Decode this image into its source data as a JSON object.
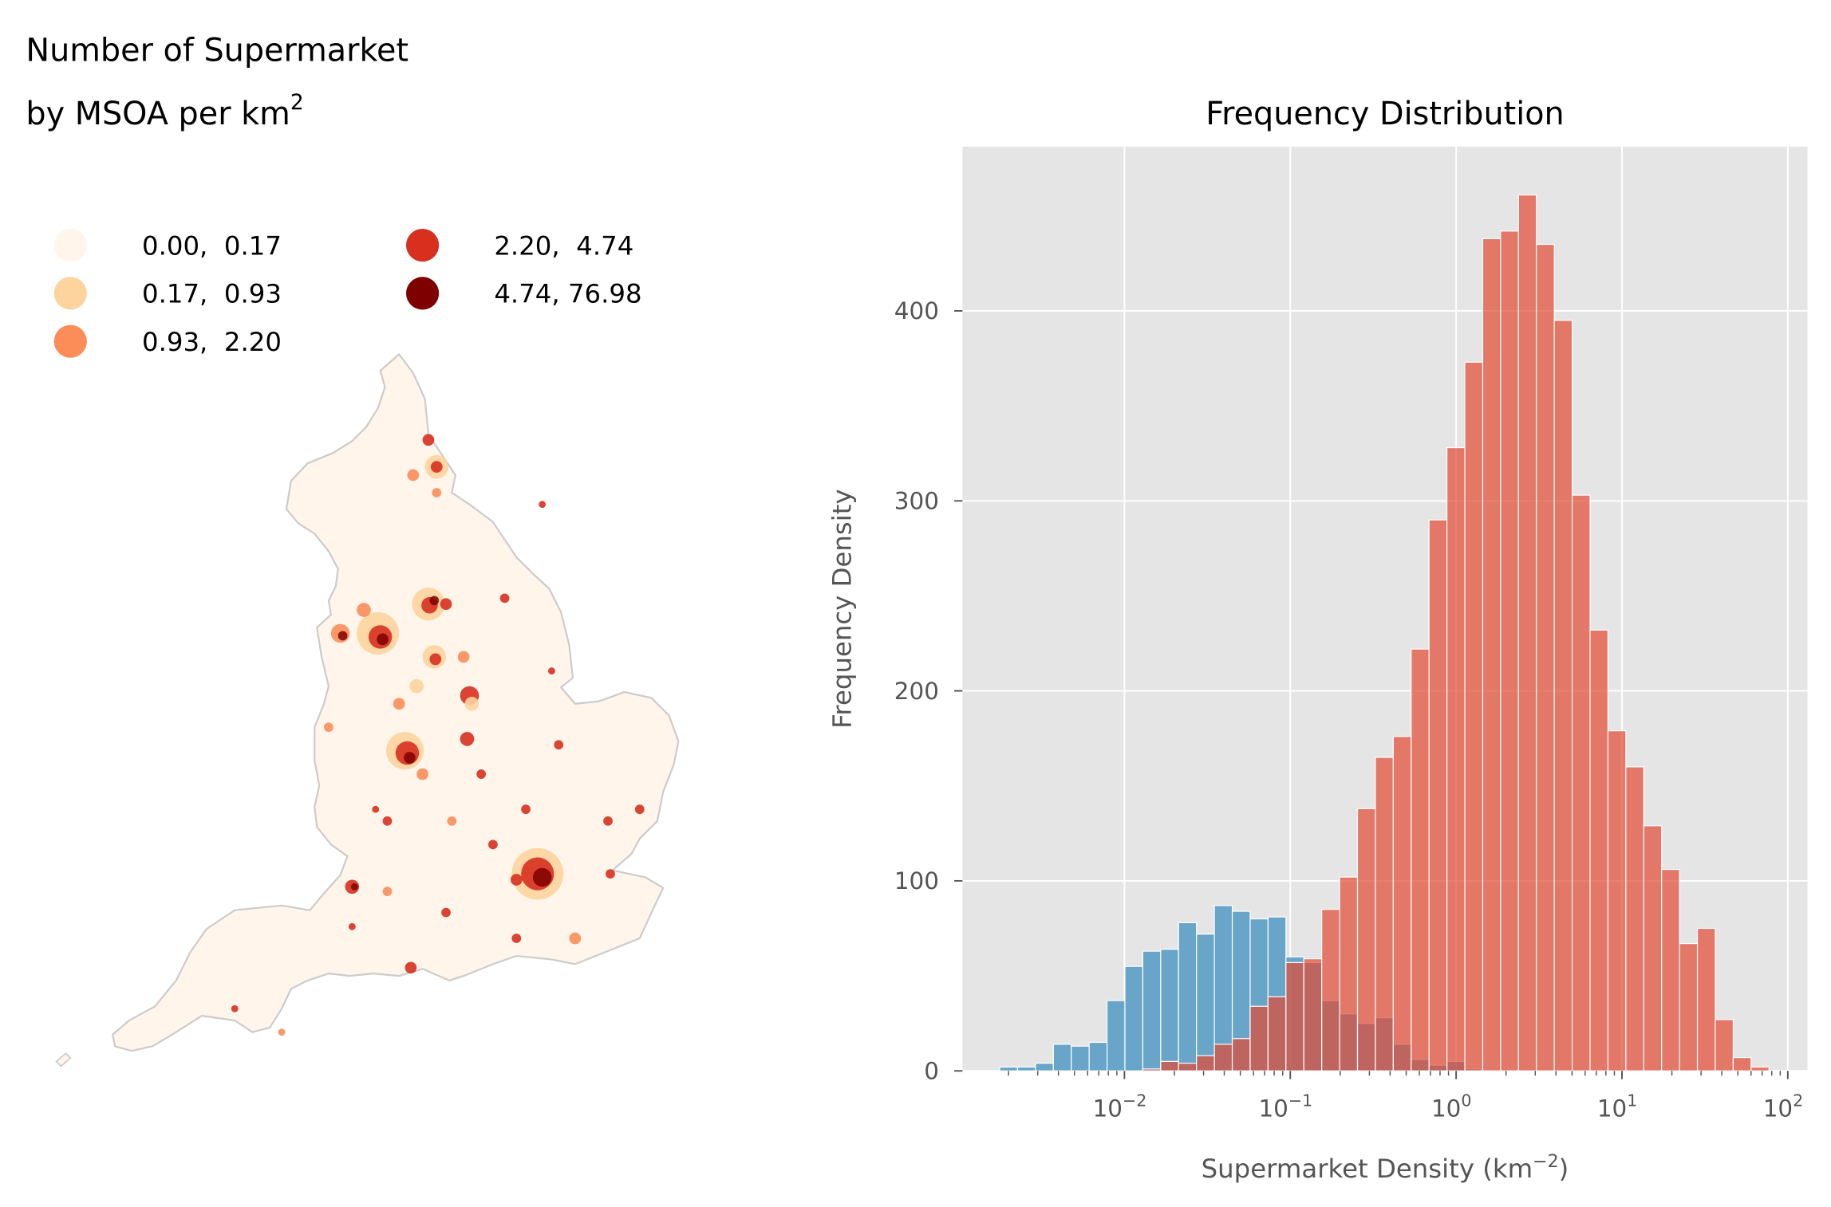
{
  "map": {
    "title_line1": "Number of Supermarket",
    "title_line2": "by MSOA per km",
    "title_sup": "2",
    "legend": [
      {
        "label": "0.00,  0.17",
        "color": "#fff5eb"
      },
      {
        "label": "0.17,  0.93",
        "color": "#fdd49e"
      },
      {
        "label": "0.93,  2.20",
        "color": "#fc8d59"
      },
      {
        "label": "2.20,  4.74",
        "color": "#d7301f"
      },
      {
        "label": "4.74, 76.98",
        "color": "#7f0000"
      }
    ],
    "land_color": "#fff5eb",
    "border_color": "#cccccc"
  },
  "chart_data": {
    "type": "bar",
    "title": "Frequency Distribution",
    "xlabel": "Supermarket Density (km",
    "xlabel_sup": "−2",
    "xlabel_close": ")",
    "ylabel": "Frequency Density",
    "xscale": "log",
    "xlim": [
      0.0012,
      110
    ],
    "ylim": [
      0,
      485
    ],
    "grid": true,
    "background": "#e5e5e5",
    "x_ticks": [
      {
        "value": 0.01,
        "base": "10",
        "exp": "−2"
      },
      {
        "value": 0.1,
        "base": "10",
        "exp": "−1"
      },
      {
        "value": 1,
        "base": "10",
        "exp": "0"
      },
      {
        "value": 10,
        "base": "10",
        "exp": "1"
      },
      {
        "value": 100,
        "base": "10",
        "exp": "2"
      }
    ],
    "y_ticks": [
      {
        "value": 0,
        "label": "0"
      },
      {
        "value": 100,
        "label": "100"
      },
      {
        "value": 200,
        "label": "200"
      },
      {
        "value": 300,
        "label": "300"
      },
      {
        "value": 400,
        "label": "400"
      }
    ],
    "bins": {
      "min": 0.00177,
      "max": 76.98,
      "count": 43,
      "scale": "log"
    },
    "series": [
      {
        "color": "#348abd",
        "opacity": 0.7,
        "values": [
          2,
          2,
          4,
          14,
          13,
          15,
          37,
          55,
          63,
          64,
          78,
          72,
          87,
          84,
          80,
          81,
          60,
          57,
          37,
          30,
          25,
          28,
          14,
          6,
          3,
          5,
          1,
          0,
          0,
          0,
          0,
          0,
          0,
          0,
          0,
          0,
          0,
          0,
          0,
          0,
          0,
          0,
          0
        ]
      },
      {
        "color": "#e24a33",
        "opacity": 0.7,
        "values": [
          0,
          0,
          0,
          0,
          0,
          0,
          0,
          0,
          1,
          5,
          4,
          8,
          14,
          17,
          34,
          39,
          57,
          59,
          85,
          102,
          138,
          165,
          176,
          222,
          290,
          328,
          373,
          438,
          442,
          461,
          435,
          395,
          303,
          232,
          179,
          160,
          129,
          106,
          67,
          75,
          27,
          7,
          2
        ]
      }
    ]
  }
}
